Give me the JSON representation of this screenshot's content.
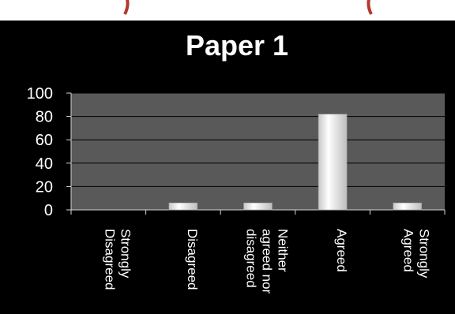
{
  "chart_data": {
    "type": "bar",
    "title": "Paper 1",
    "xlabel": "",
    "ylabel": "",
    "categories": [
      [
        "Strongly",
        "Disagreed"
      ],
      [
        "Disagreed"
      ],
      [
        "Neither",
        "agreed nor",
        "disagreed"
      ],
      [
        "Agreed"
      ],
      [
        "Strongly",
        "Agreed"
      ]
    ],
    "values": [
      0,
      6,
      6,
      82,
      6
    ],
    "ylim": [
      0,
      100
    ],
    "yticks": [
      0,
      20,
      40,
      60,
      80,
      100
    ],
    "grid": true,
    "legend": "none",
    "colors": {
      "background": "#000000",
      "plot_area": "#595959",
      "gridline": "#000000",
      "bar": "#f2f2f2",
      "text": "#ffffff",
      "top_strip_text": "#c0392b"
    }
  }
}
